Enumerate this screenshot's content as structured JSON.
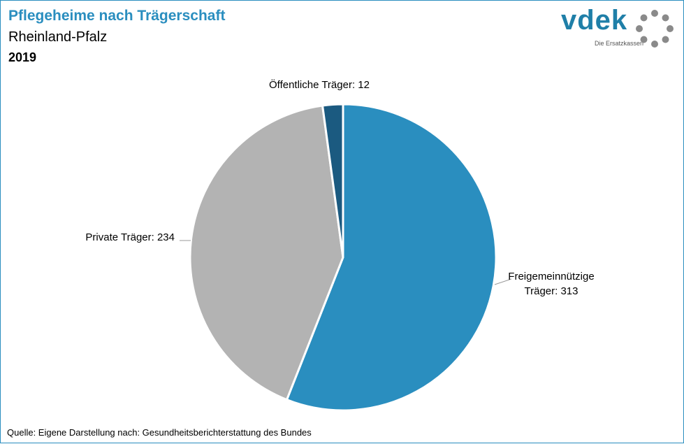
{
  "header": {
    "title": "Pflegeheime nach Trägerschaft",
    "subtitle": "Rheinland-Pfalz",
    "year": "2019"
  },
  "logo": {
    "word": "vdek",
    "tagline": "Die Ersatzkassen",
    "icon": "vdek-dot-ring-icon"
  },
  "colors": {
    "accent": "#2a8ebf",
    "freigemeinnuetzig": "#2a8ebf",
    "privat": "#b3b3b3",
    "oeffentlich": "#1b5a80"
  },
  "chart_data": {
    "type": "pie",
    "categories": [
      "Freigemeinnützige Träger",
      "Private Träger",
      "Öffentliche Träger"
    ],
    "values": [
      313,
      234,
      12
    ],
    "labels": [
      [
        "Freigemeinnützige",
        "Träger: 313"
      ],
      [
        "Private Träger: 234"
      ],
      [
        "Öffentliche Träger: 12"
      ]
    ]
  },
  "source": "Quelle: Eigene Darstellung nach: Gesundheitsberichterstattung  des Bundes"
}
